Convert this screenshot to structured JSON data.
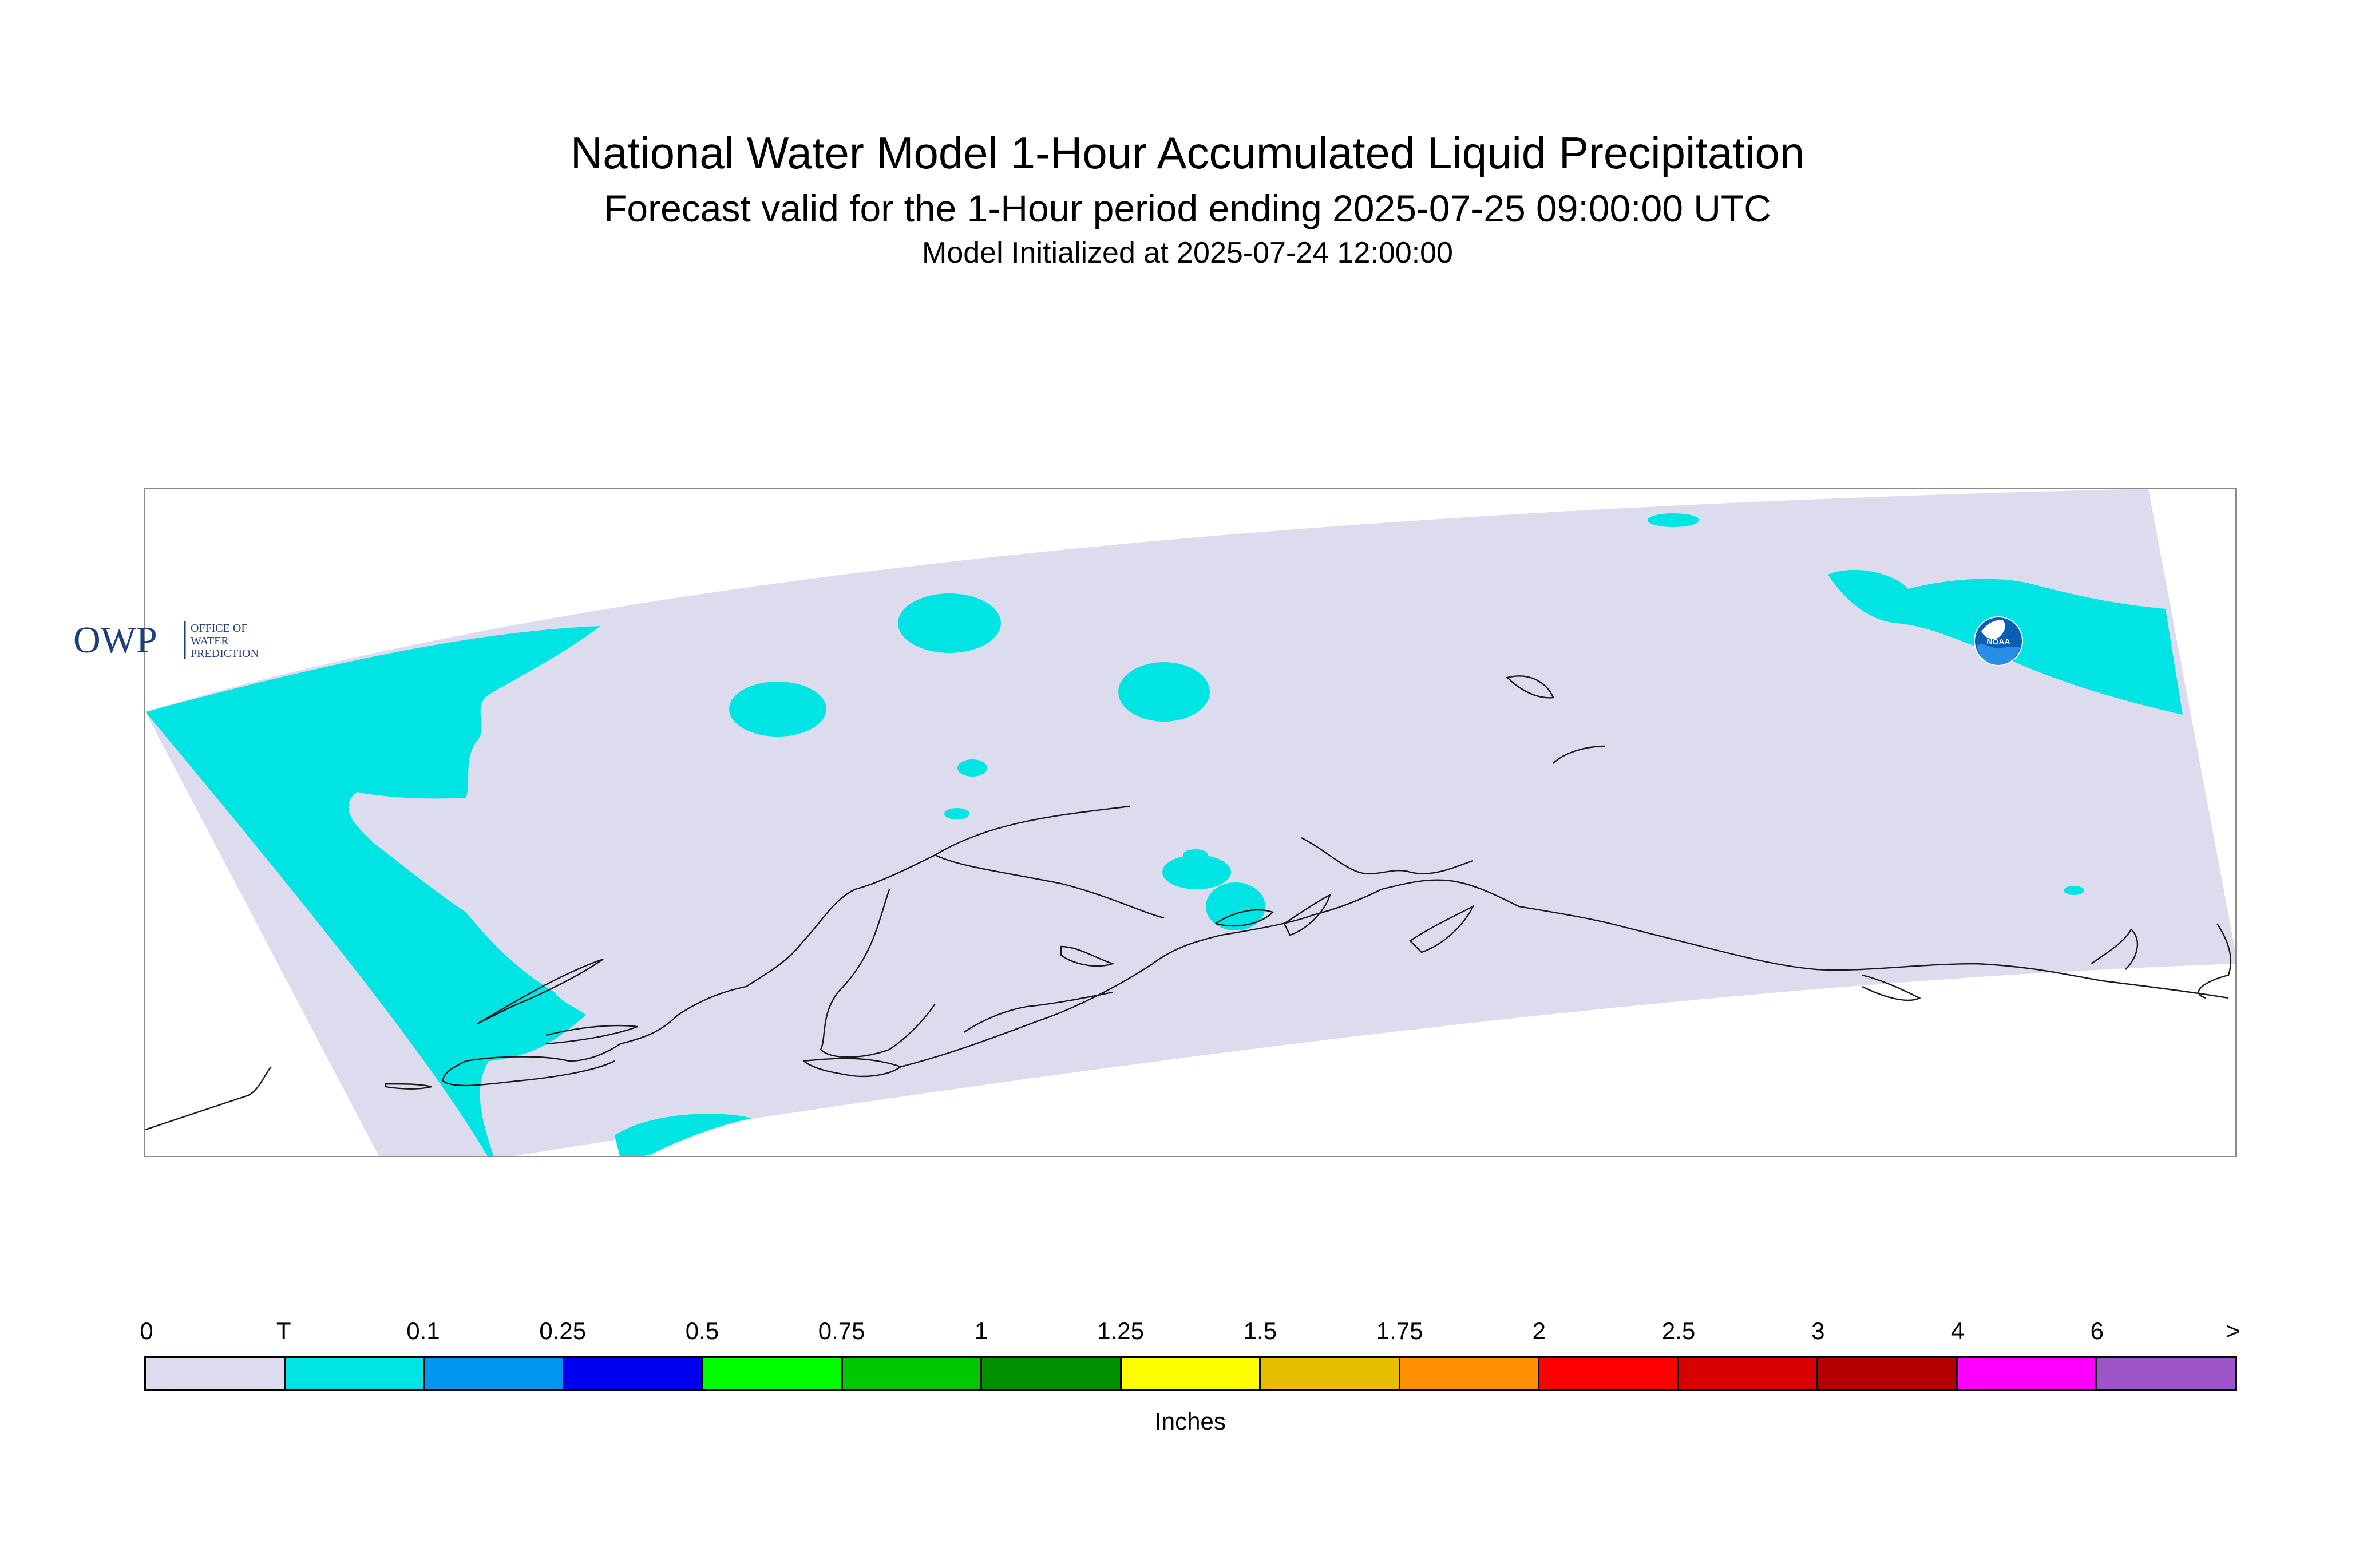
{
  "title": {
    "main": "National Water Model 1-Hour Accumulated Liquid Precipitation",
    "forecast": "Forecast valid for the 1-Hour period ending 2025-07-25 09:00:00 UTC",
    "init": "Model Initialized at 2025-07-24 12:00:00"
  },
  "map": {
    "domain_color": "#dcdcee",
    "precip_color": "#00e4e4",
    "coastline_color": "#1a1a1a"
  },
  "logos": {
    "owp": {
      "letters": "OWP",
      "line1": "OFFICE OF",
      "line2": "WATER",
      "line3": "PREDICTION",
      "color": "#1f3f7a"
    },
    "noaa": {
      "label": "NOAA",
      "color": "#0a5fb4"
    }
  },
  "legend": {
    "ticks": [
      "0",
      "T",
      "0.1",
      "0.25",
      "0.5",
      "0.75",
      "1",
      "1.25",
      "1.5",
      "1.75",
      "2",
      "2.5",
      "3",
      "4",
      "6",
      ">"
    ],
    "colors": [
      "#dcdcee",
      "#00e4e4",
      "#0096f0",
      "#0000f0",
      "#00ff00",
      "#00c800",
      "#009000",
      "#ffff00",
      "#e6c000",
      "#ff9000",
      "#ff0000",
      "#d80000",
      "#b40000",
      "#ff00ff",
      "#9c54c8"
    ],
    "units": "Inches"
  }
}
